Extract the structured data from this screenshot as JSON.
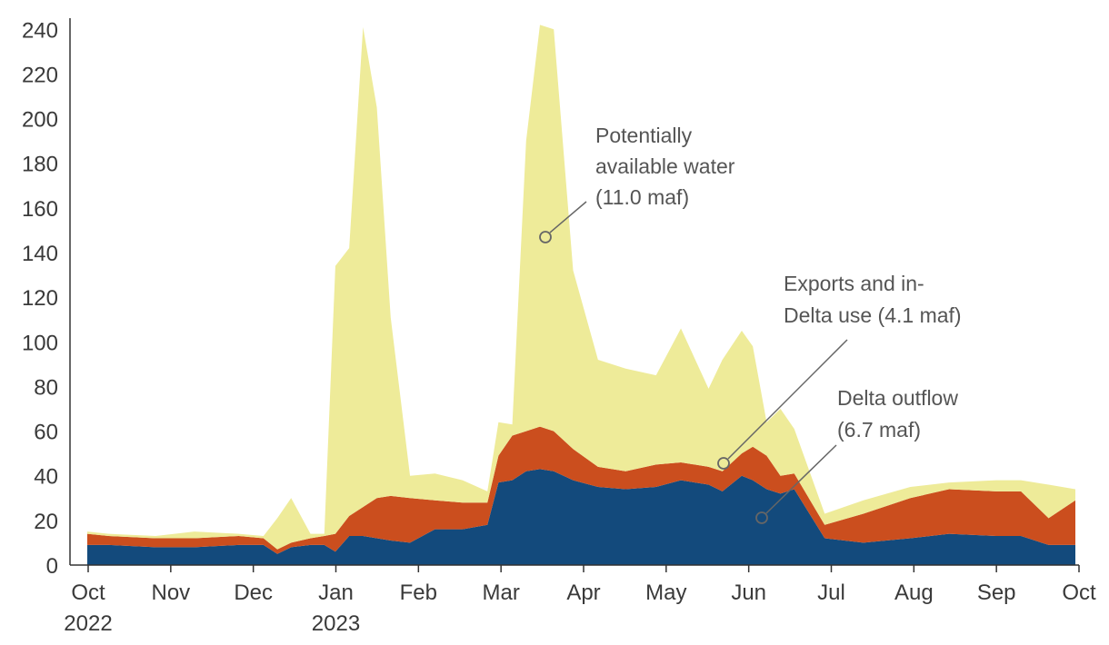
{
  "chart_data": {
    "type": "area",
    "stacked": true,
    "ylim": [
      0,
      245
    ],
    "yticks": [
      0,
      20,
      40,
      60,
      80,
      100,
      120,
      140,
      160,
      180,
      200,
      220,
      240
    ],
    "xticks": [
      {
        "month": "Oct",
        "year": "2022"
      },
      {
        "month": "Nov",
        "year": ""
      },
      {
        "month": "Dec",
        "year": ""
      },
      {
        "month": "Jan",
        "year": "2023"
      },
      {
        "month": "Feb",
        "year": ""
      },
      {
        "month": "Mar",
        "year": ""
      },
      {
        "month": "Apr",
        "year": ""
      },
      {
        "month": "May",
        "year": ""
      },
      {
        "month": "Jun",
        "year": ""
      },
      {
        "month": "Jul",
        "year": ""
      },
      {
        "month": "Aug",
        "year": ""
      },
      {
        "month": "Sep",
        "year": ""
      },
      {
        "month": "Oct",
        "year": ""
      }
    ],
    "x_dates": [
      "2022-10-01",
      "2022-10-15",
      "2022-11-01",
      "2022-11-15",
      "2022-12-01",
      "2022-12-10",
      "2022-12-15",
      "2022-12-20",
      "2022-12-27",
      "2023-01-01",
      "2023-01-05",
      "2023-01-10",
      "2023-01-15",
      "2023-01-20",
      "2023-01-25",
      "2023-02-01",
      "2023-02-10",
      "2023-02-20",
      "2023-03-01",
      "2023-03-05",
      "2023-03-10",
      "2023-03-15",
      "2023-03-20",
      "2023-03-25",
      "2023-04-01",
      "2023-04-10",
      "2023-04-20",
      "2023-05-01",
      "2023-05-10",
      "2023-05-20",
      "2023-05-25",
      "2023-06-01",
      "2023-06-05",
      "2023-06-10",
      "2023-06-15",
      "2023-06-20",
      "2023-07-01",
      "2023-07-15",
      "2023-08-01",
      "2023-08-15",
      "2023-09-01",
      "2023-09-10",
      "2023-09-20",
      "2023-10-01"
    ],
    "series": [
      {
        "key": "outflow",
        "color": "#134a7c",
        "values": [
          9,
          9,
          8,
          8,
          9,
          9,
          5,
          8,
          9,
          9,
          6,
          13,
          13,
          12,
          11,
          10,
          16,
          16,
          18,
          37,
          38,
          42,
          43,
          42,
          38,
          35,
          34,
          35,
          38,
          36,
          33,
          40,
          38,
          34,
          32,
          34,
          12,
          10,
          12,
          14,
          13,
          13,
          9,
          9
        ]
      },
      {
        "key": "exports",
        "color": "#cb4e1e",
        "values": [
          5,
          4,
          4,
          4,
          4,
          3,
          2,
          2,
          3,
          4,
          8,
          9,
          13,
          18,
          20,
          20,
          13,
          12,
          10,
          12,
          20,
          18,
          19,
          18,
          14,
          9,
          8,
          10,
          8,
          8,
          9,
          10,
          15,
          15,
          8,
          7,
          6,
          13,
          18,
          20,
          20,
          20,
          12,
          20
        ]
      },
      {
        "key": "available",
        "color": "#eeeb99",
        "values": [
          1,
          1,
          1,
          3,
          1,
          1,
          14,
          20,
          2,
          1,
          120,
          120,
          215,
          175,
          80,
          10,
          12,
          10,
          5,
          15,
          5,
          130,
          180,
          180,
          80,
          48,
          46,
          40,
          60,
          35,
          50,
          55,
          45,
          15,
          30,
          20,
          5,
          6,
          5,
          3,
          5,
          5,
          15,
          5
        ]
      }
    ],
    "annotations": [
      {
        "lines": [
          "Potentially",
          "available water",
          "(11.0 maf)"
        ]
      },
      {
        "lines": [
          "Exports and in-",
          "Delta use (4.1 maf)"
        ]
      },
      {
        "lines": [
          "Delta outflow",
          "(6.7 maf)"
        ]
      }
    ]
  }
}
